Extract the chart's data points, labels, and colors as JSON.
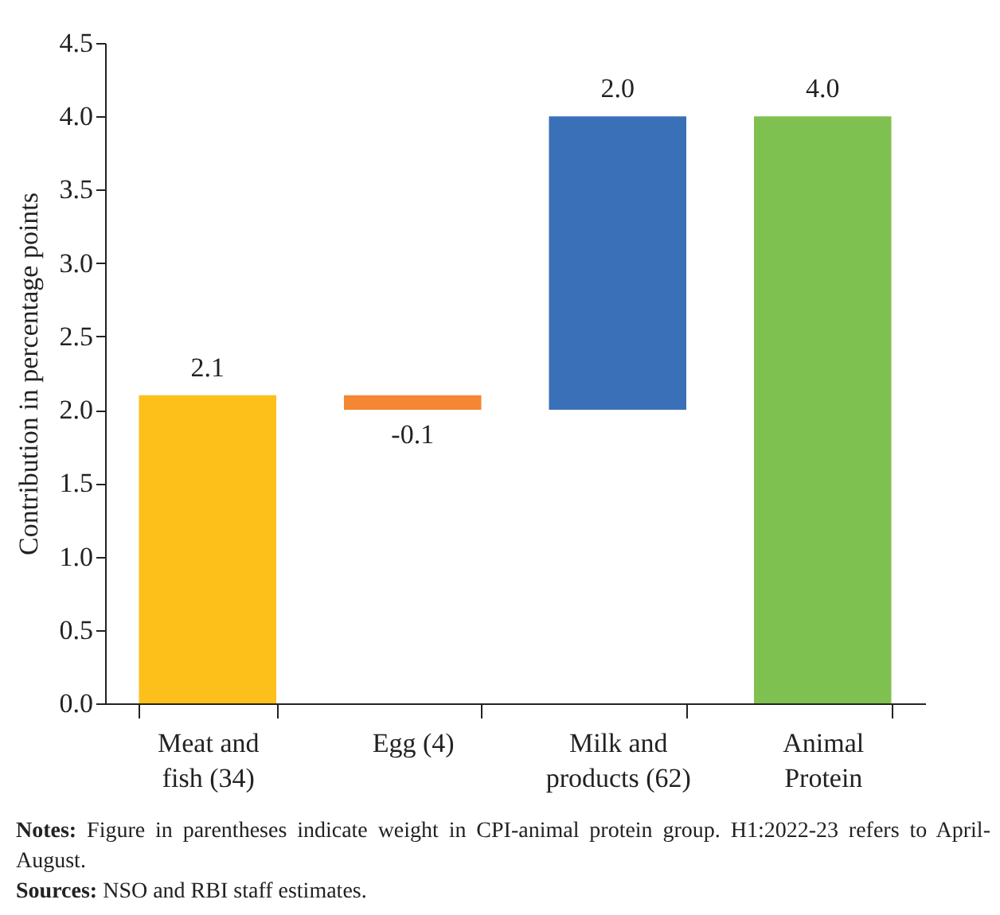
{
  "chart_data": {
    "type": "bar",
    "ylabel": "Contribution in percentage points",
    "categories": [
      "Meat and fish (34)",
      "Egg (4)",
      "Milk and products (62)",
      "Animal Protein"
    ],
    "values": [
      2.1,
      -0.1,
      2.0,
      4.0
    ],
    "base": [
      0,
      2.1,
      2.0,
      0
    ],
    "colors": [
      "#fdbf1a",
      "#f58634",
      "#3a70b8",
      "#7fc150"
    ],
    "value_labels": [
      "2.1",
      "-0.1",
      "2.0",
      "4.0"
    ],
    "ylim": [
      0,
      4.5
    ],
    "yticks": [
      {
        "value": 0,
        "label": "0.0"
      },
      {
        "value": 0.5,
        "label": "0.5"
      },
      {
        "value": 1,
        "label": "1.0"
      },
      {
        "value": 1.5,
        "label": "1.5"
      },
      {
        "value": 2,
        "label": "2.0"
      },
      {
        "value": 2.5,
        "label": "2.5"
      },
      {
        "value": 3,
        "label": "3.0"
      },
      {
        "value": 3.5,
        "label": "3.5"
      },
      {
        "value": 4,
        "label": "4.0"
      },
      {
        "value": 4.5,
        "label": "4.5"
      }
    ],
    "grid": false,
    "legend": false,
    "annotations": [
      "Notes: Figure in parentheses indicate weight in CPI-animal protein group. H1:2022-23 refers to April-August.",
      "Sources: NSO and RBI staff estimates."
    ]
  }
}
